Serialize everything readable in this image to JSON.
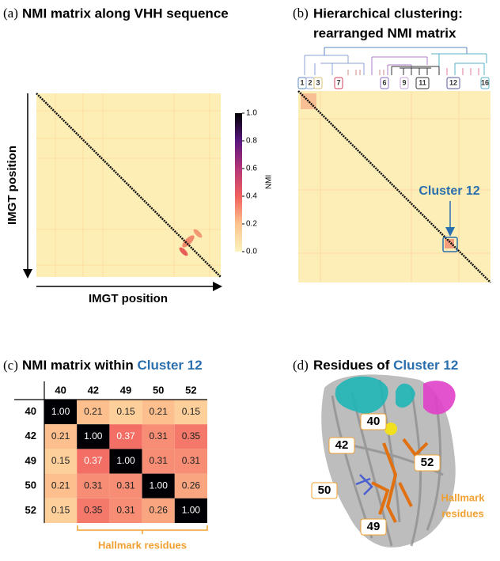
{
  "panel_a": {
    "label": "(a)",
    "title": "NMI matrix along VHH sequence",
    "x_label": "IMGT position",
    "y_label": "IMGT position",
    "colorbar_label": "NMI",
    "colorbar_lim": [
      0,
      1
    ],
    "colorbar_ticks": [
      {
        "value": 0,
        "label": "0.0"
      },
      {
        "value": 0.2,
        "label": "0.2"
      },
      {
        "value": 0.4,
        "label": "0.4"
      },
      {
        "value": 0.6,
        "label": "0.6"
      },
      {
        "value": 0.8,
        "label": "0.8"
      },
      {
        "value": 1,
        "label": "1.0"
      }
    ]
  },
  "panel_b": {
    "label": "(b)",
    "title_lines": [
      "Hierarchical clustering:",
      "rearranged NMI matrix"
    ],
    "cluster_labels": [
      "1",
      "2",
      "3",
      "7",
      "6",
      "9",
      "11",
      "12",
      "16"
    ],
    "annotation": "Cluster 12"
  },
  "panel_c": {
    "label": "(c)",
    "title": "NMI matrix within ",
    "title_highlight": "Cluster 12",
    "type": "heatmap",
    "categories": [
      "40",
      "42",
      "49",
      "50",
      "52"
    ],
    "values": [
      [
        1,
        0.21,
        0.15,
        0.21,
        0.15
      ],
      [
        0.21,
        1,
        0.37,
        0.31,
        0.35
      ],
      [
        0.15,
        0.37,
        1,
        0.31,
        0.31
      ],
      [
        0.21,
        0.31,
        0.31,
        1,
        0.26
      ],
      [
        0.15,
        0.35,
        0.31,
        0.26,
        1
      ]
    ],
    "value_labels": [
      [
        "1.00",
        "0.21",
        "0.15",
        "0.21",
        "0.15"
      ],
      [
        "0.21",
        "1.00",
        "0.37",
        "0.31",
        "0.35"
      ],
      [
        "0.15",
        "0.37",
        "1.00",
        "0.31",
        "0.31"
      ],
      [
        "0.21",
        "0.31",
        "0.31",
        "1.00",
        "0.26"
      ],
      [
        "0.15",
        "0.35",
        "0.31",
        "0.26",
        "1.00"
      ]
    ],
    "annotation": "Hallmark residues"
  },
  "panel_d": {
    "label": "(d)",
    "title": "Residues of ",
    "title_highlight": "Cluster 12",
    "residue_labels": [
      "40",
      "42",
      "52",
      "50",
      "49"
    ],
    "annotation_lines": [
      "Hallmark",
      "residues"
    ]
  }
}
